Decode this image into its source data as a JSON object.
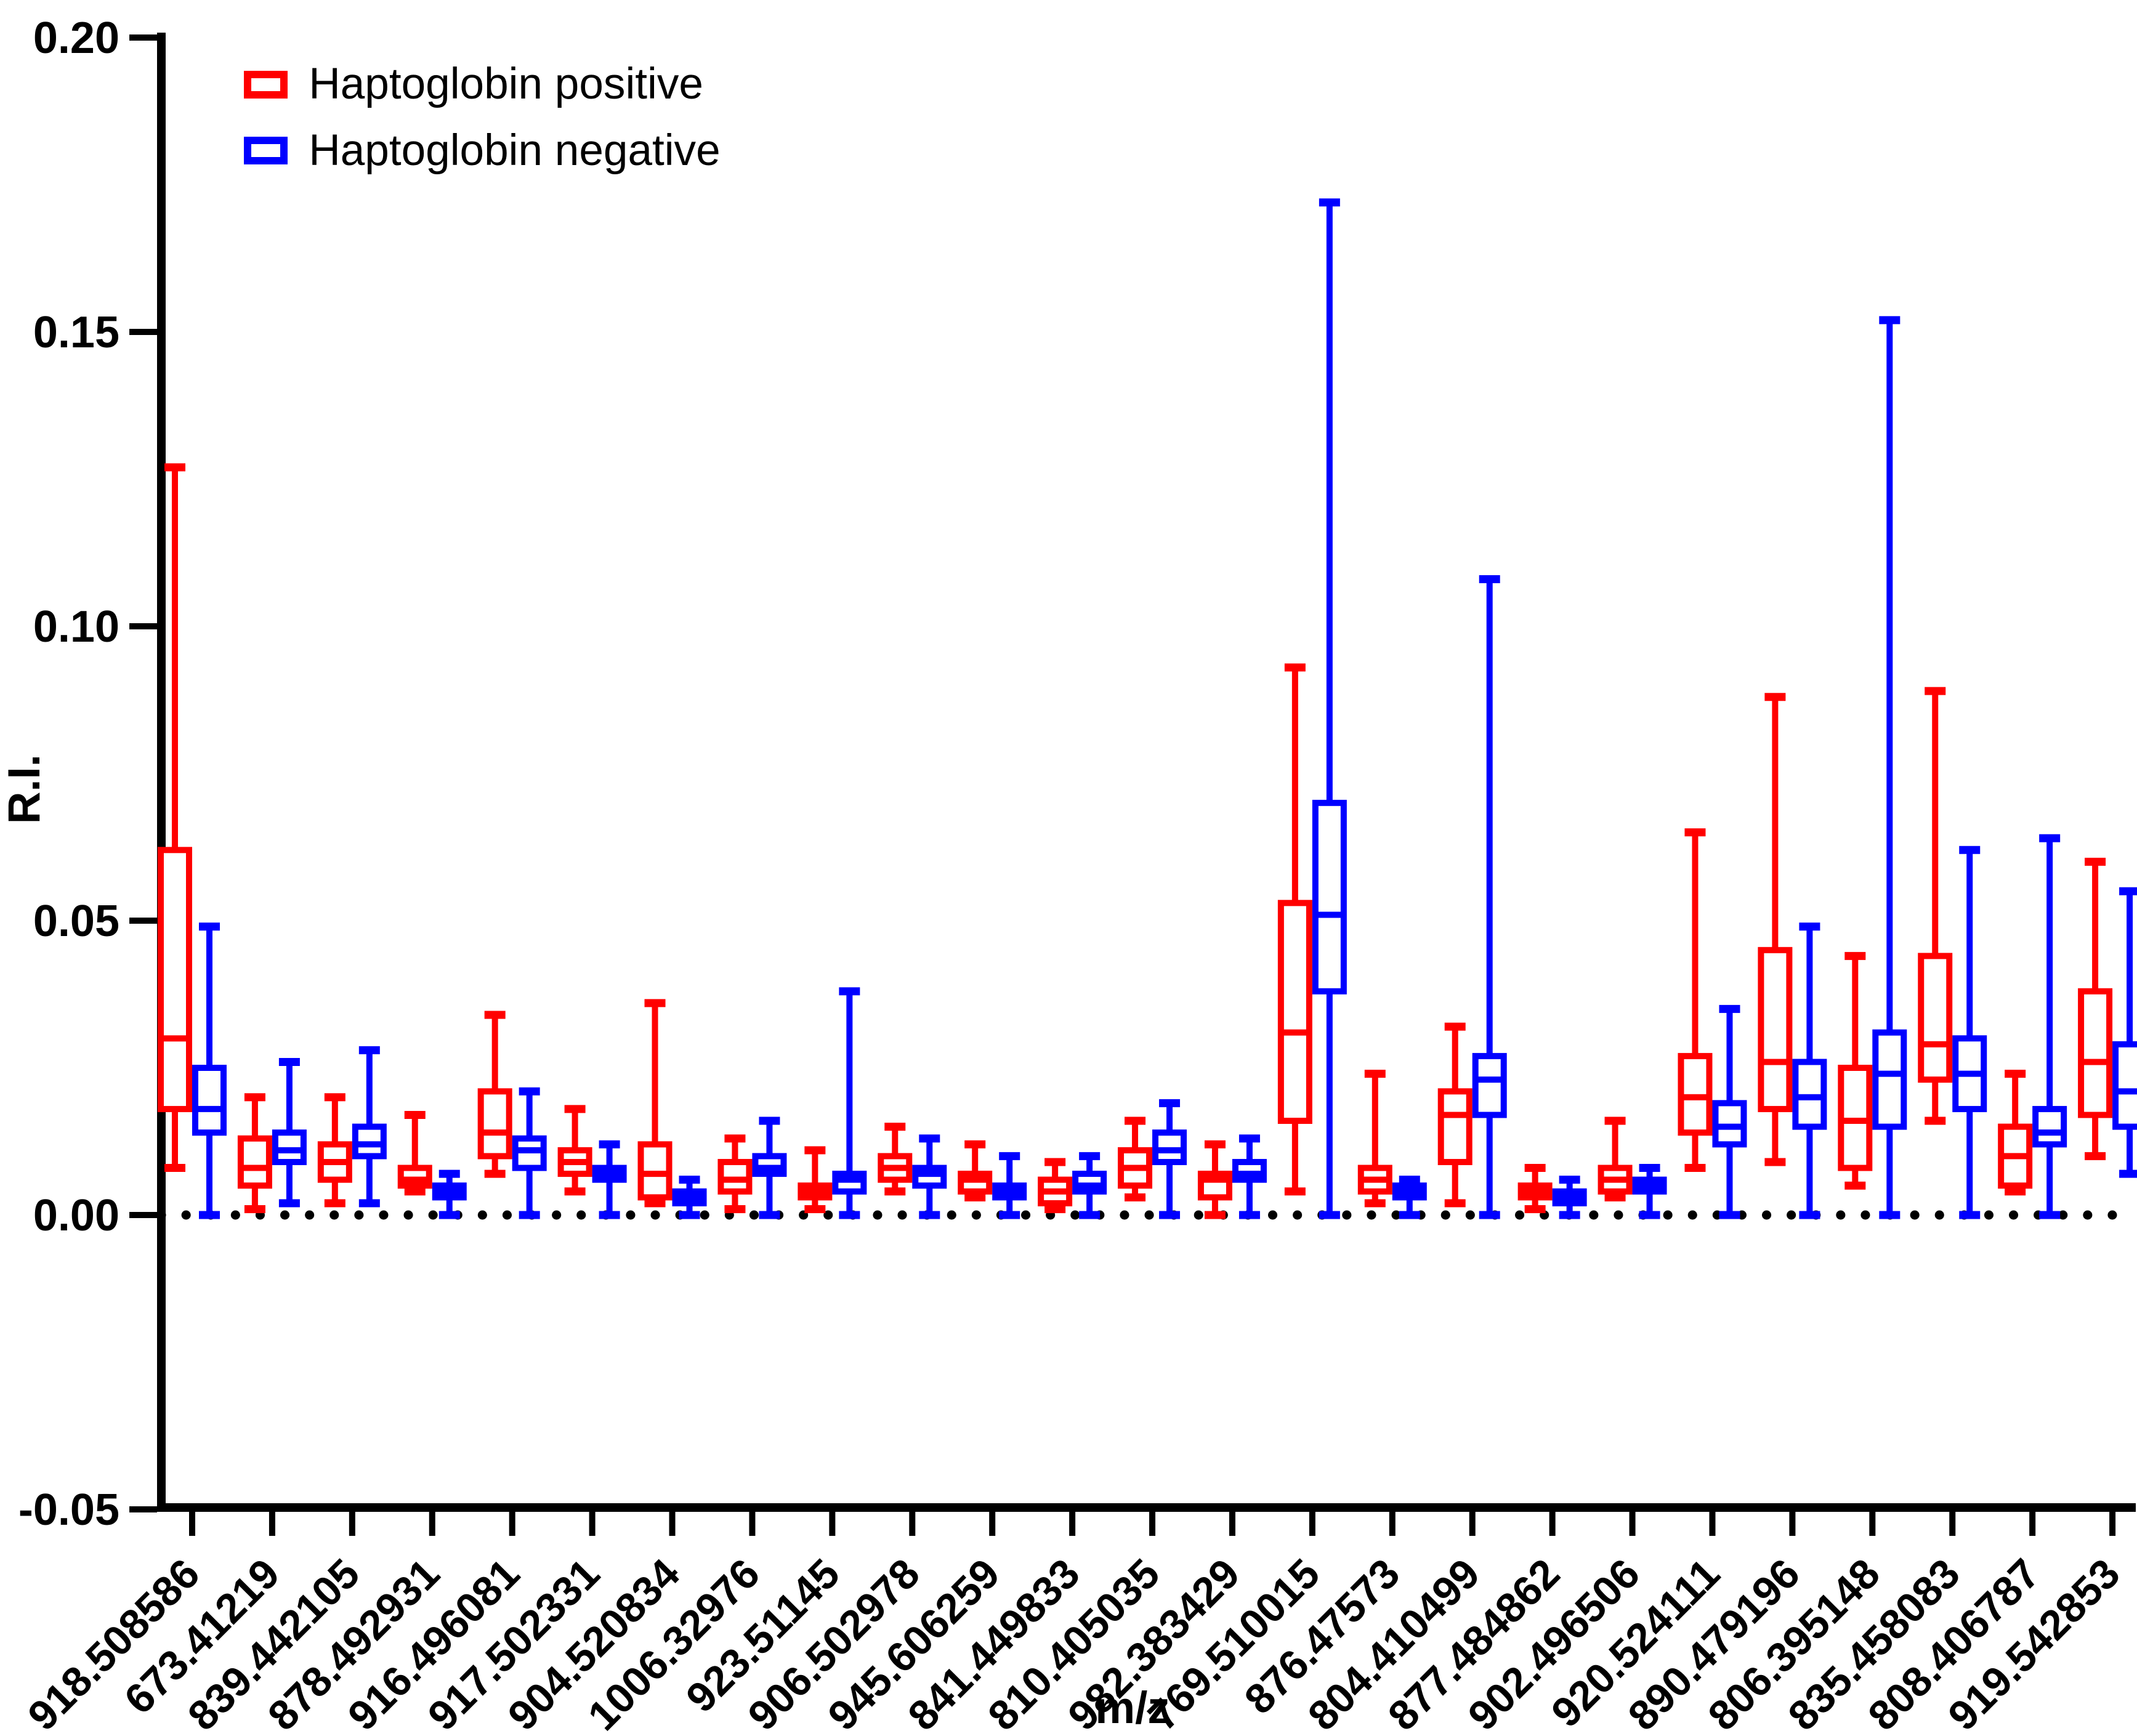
{
  "figure": {
    "y_axis_title": "R.I.",
    "x_axis_title": "m/z",
    "legend": {
      "positive_label": "Haptoglobin positive",
      "negative_label": "Haptoglobin negative"
    }
  },
  "chart_data": {
    "type": "box",
    "title": "",
    "xlabel": "m/z",
    "ylabel": "R.I.",
    "ylim": [
      -0.05,
      0.2
    ],
    "y_ticks": [
      0.2,
      0.15,
      0.1,
      0.05,
      0.0,
      -0.05
    ],
    "y_tick_labels": [
      "0.20",
      "0.15",
      "0.10",
      "0.05",
      "0.00",
      "-0.05"
    ],
    "grid": false,
    "zero_line_style": "dotted",
    "legend_position": "top-left",
    "categories": [
      "918.508586",
      "673.41219",
      "839.442105",
      "878.492931",
      "916.496081",
      "917.502331",
      "904.520834",
      "1006.32976",
      "923.51145",
      "906.502978",
      "945.606259",
      "841.449833",
      "810.405035",
      "982.383429",
      "769.510015",
      "876.47573",
      "804.410499",
      "877.484862",
      "902.496506",
      "920.524111",
      "890.479196",
      "806.395148",
      "835.458083",
      "808.406787",
      "919.542853"
    ],
    "series": [
      {
        "name": "Haptoglobin positive",
        "color": "#ff0000",
        "boxes": [
          {
            "min": 0.008,
            "q1": 0.018,
            "median": 0.03,
            "q3": 0.062,
            "max": 0.127
          },
          {
            "min": 0.001,
            "q1": 0.005,
            "median": 0.008,
            "q3": 0.013,
            "max": 0.02
          },
          {
            "min": 0.002,
            "q1": 0.006,
            "median": 0.009,
            "q3": 0.012,
            "max": 0.02
          },
          {
            "min": 0.004,
            "q1": 0.005,
            "median": 0.006,
            "q3": 0.008,
            "max": 0.017
          },
          {
            "min": 0.007,
            "q1": 0.01,
            "median": 0.014,
            "q3": 0.021,
            "max": 0.034
          },
          {
            "min": 0.004,
            "q1": 0.007,
            "median": 0.009,
            "q3": 0.011,
            "max": 0.018
          },
          {
            "min": 0.002,
            "q1": 0.003,
            "median": 0.007,
            "q3": 0.012,
            "max": 0.036
          },
          {
            "min": 0.001,
            "q1": 0.004,
            "median": 0.006,
            "q3": 0.009,
            "max": 0.013
          },
          {
            "min": 0.001,
            "q1": 0.003,
            "median": 0.004,
            "q3": 0.005,
            "max": 0.011
          },
          {
            "min": 0.004,
            "q1": 0.006,
            "median": 0.008,
            "q3": 0.01,
            "max": 0.015
          },
          {
            "min": 0.003,
            "q1": 0.004,
            "median": 0.006,
            "q3": 0.007,
            "max": 0.012
          },
          {
            "min": 0.001,
            "q1": 0.002,
            "median": 0.004,
            "q3": 0.006,
            "max": 0.009
          },
          {
            "min": 0.003,
            "q1": 0.005,
            "median": 0.008,
            "q3": 0.011,
            "max": 0.016
          },
          {
            "min": 0.0,
            "q1": 0.003,
            "median": 0.006,
            "q3": 0.007,
            "max": 0.012
          },
          {
            "min": 0.004,
            "q1": 0.016,
            "median": 0.031,
            "q3": 0.053,
            "max": 0.093
          },
          {
            "min": 0.002,
            "q1": 0.004,
            "median": 0.006,
            "q3": 0.008,
            "max": 0.024
          },
          {
            "min": 0.002,
            "q1": 0.009,
            "median": 0.017,
            "q3": 0.021,
            "max": 0.032
          },
          {
            "min": 0.001,
            "q1": 0.003,
            "median": 0.004,
            "q3": 0.005,
            "max": 0.008
          },
          {
            "min": 0.003,
            "q1": 0.004,
            "median": 0.006,
            "q3": 0.008,
            "max": 0.016
          },
          {
            "min": 0.008,
            "q1": 0.014,
            "median": 0.02,
            "q3": 0.027,
            "max": 0.065
          },
          {
            "min": 0.009,
            "q1": 0.018,
            "median": 0.026,
            "q3": 0.045,
            "max": 0.088
          },
          {
            "min": 0.005,
            "q1": 0.008,
            "median": 0.016,
            "q3": 0.025,
            "max": 0.044
          },
          {
            "min": 0.016,
            "q1": 0.023,
            "median": 0.029,
            "q3": 0.044,
            "max": 0.089
          },
          {
            "min": 0.004,
            "q1": 0.005,
            "median": 0.01,
            "q3": 0.015,
            "max": 0.024
          },
          {
            "min": 0.01,
            "q1": 0.017,
            "median": 0.026,
            "q3": 0.038,
            "max": 0.06
          }
        ]
      },
      {
        "name": "Haptoglobin negative",
        "color": "#0000ff",
        "boxes": [
          {
            "min": 0.0,
            "q1": 0.014,
            "median": 0.018,
            "q3": 0.025,
            "max": 0.049
          },
          {
            "min": 0.002,
            "q1": 0.009,
            "median": 0.011,
            "q3": 0.014,
            "max": 0.026
          },
          {
            "min": 0.002,
            "q1": 0.01,
            "median": 0.012,
            "q3": 0.015,
            "max": 0.028
          },
          {
            "min": 0.0,
            "q1": 0.003,
            "median": 0.004,
            "q3": 0.005,
            "max": 0.007
          },
          {
            "min": 0.0,
            "q1": 0.008,
            "median": 0.011,
            "q3": 0.013,
            "max": 0.021
          },
          {
            "min": 0.0,
            "q1": 0.006,
            "median": 0.007,
            "q3": 0.008,
            "max": 0.012
          },
          {
            "min": 0.0,
            "q1": 0.002,
            "median": 0.003,
            "q3": 0.004,
            "max": 0.006
          },
          {
            "min": 0.0,
            "q1": 0.007,
            "median": 0.008,
            "q3": 0.01,
            "max": 0.016
          },
          {
            "min": 0.0,
            "q1": 0.004,
            "median": 0.006,
            "q3": 0.007,
            "max": 0.038
          },
          {
            "min": 0.0,
            "q1": 0.005,
            "median": 0.007,
            "q3": 0.008,
            "max": 0.013
          },
          {
            "min": 0.0,
            "q1": 0.003,
            "median": 0.004,
            "q3": 0.005,
            "max": 0.01
          },
          {
            "min": 0.0,
            "q1": 0.004,
            "median": 0.005,
            "q3": 0.007,
            "max": 0.01
          },
          {
            "min": 0.0,
            "q1": 0.009,
            "median": 0.011,
            "q3": 0.014,
            "max": 0.019
          },
          {
            "min": 0.0,
            "q1": 0.006,
            "median": 0.007,
            "q3": 0.009,
            "max": 0.013
          },
          {
            "min": 0.0,
            "q1": 0.038,
            "median": 0.051,
            "q3": 0.07,
            "max": 0.172
          },
          {
            "min": 0.0,
            "q1": 0.003,
            "median": 0.004,
            "q3": 0.005,
            "max": 0.006
          },
          {
            "min": 0.0,
            "q1": 0.017,
            "median": 0.023,
            "q3": 0.027,
            "max": 0.108
          },
          {
            "min": 0.0,
            "q1": 0.002,
            "median": 0.003,
            "q3": 0.004,
            "max": 0.006
          },
          {
            "min": 0.0,
            "q1": 0.004,
            "median": 0.005,
            "q3": 0.006,
            "max": 0.008
          },
          {
            "min": 0.0,
            "q1": 0.012,
            "median": 0.015,
            "q3": 0.019,
            "max": 0.035
          },
          {
            "min": 0.0,
            "q1": 0.015,
            "median": 0.02,
            "q3": 0.026,
            "max": 0.049
          },
          {
            "min": 0.0,
            "q1": 0.015,
            "median": 0.024,
            "q3": 0.031,
            "max": 0.152
          },
          {
            "min": 0.0,
            "q1": 0.018,
            "median": 0.024,
            "q3": 0.03,
            "max": 0.062
          },
          {
            "min": 0.0,
            "q1": 0.012,
            "median": 0.014,
            "q3": 0.018,
            "max": 0.064
          },
          {
            "min": 0.007,
            "q1": 0.015,
            "median": 0.021,
            "q3": 0.029,
            "max": 0.055
          }
        ]
      }
    ]
  }
}
